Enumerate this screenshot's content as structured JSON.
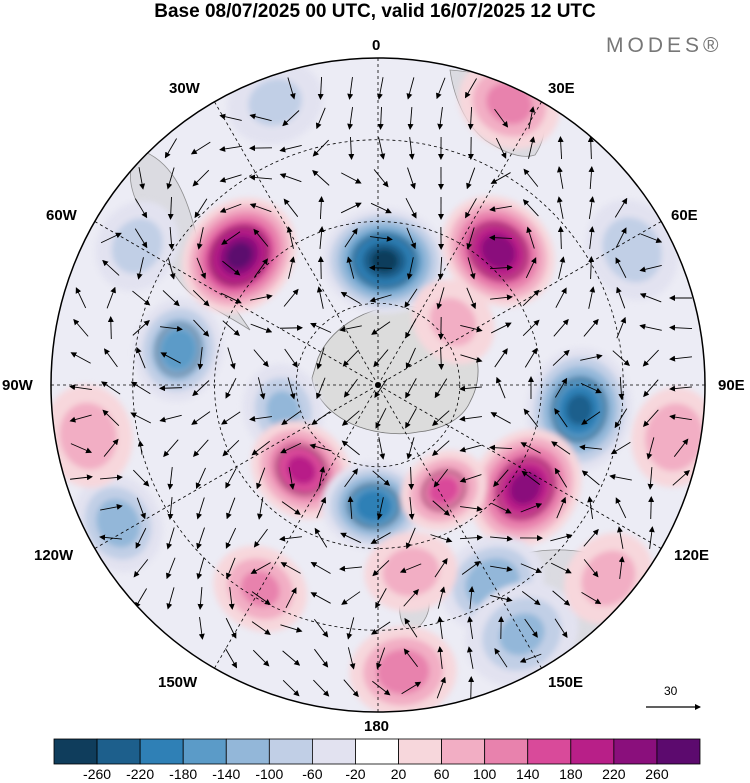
{
  "title": "Base 08/07/2025 00 UTC, valid 16/07/2025 12 UTC",
  "brand": "MODES®",
  "longitude_labels": {
    "top": "0",
    "bottom": "180",
    "left": "90W",
    "right": "90E",
    "w30": "30W",
    "e30": "30E",
    "w60": "60W",
    "e60": "60E",
    "w120": "120W",
    "e120": "120E",
    "w150": "150W",
    "e150": "150E"
  },
  "reference_vector": "30",
  "colorbar": {
    "ticks": [
      "-260",
      "-220",
      "-180",
      "-140",
      "-100",
      "-60",
      "-20",
      "20",
      "60",
      "100",
      "140",
      "180",
      "220",
      "260"
    ],
    "colors": [
      "#0f3d5c",
      "#1d5f8c",
      "#2f80b6",
      "#5b9bc8",
      "#93b7d9",
      "#c1cfe6",
      "#e2e2f0",
      "#ffffff",
      "#f7d7dc",
      "#f2aec4",
      "#e882ad",
      "#d94a9a",
      "#b81f88",
      "#8a0f7c",
      "#5c0a6e"
    ]
  },
  "anomalies": [
    {
      "lon": 3,
      "colat": 0.38,
      "size": 1.0,
      "value": -260
    },
    {
      "lon": 42,
      "colat": 0.55,
      "size": 0.95,
      "value": 240
    },
    {
      "lon": -47,
      "colat": 0.58,
      "size": 1.0,
      "value": 260
    },
    {
      "lon": 97,
      "colat": 0.62,
      "size": 1.0,
      "value": -220
    },
    {
      "lon": 125,
      "colat": 0.55,
      "size": 1.0,
      "value": 230
    },
    {
      "lon": -80,
      "colat": 0.62,
      "size": 0.7,
      "value": -160
    },
    {
      "lon": -105,
      "colat": 0.3,
      "size": 0.55,
      "value": -100
    },
    {
      "lon": -138,
      "colat": 0.35,
      "size": 0.75,
      "value": 180
    },
    {
      "lon": -178,
      "colat": 0.37,
      "size": 0.7,
      "value": -200
    },
    {
      "lon": 148,
      "colat": 0.38,
      "size": 0.5,
      "value": 140
    },
    {
      "lon": 150,
      "colat": 0.7,
      "size": 0.75,
      "value": -130
    },
    {
      "lon": 175,
      "colat": 0.88,
      "size": 0.75,
      "value": 120
    },
    {
      "lon": 150,
      "colat": 0.88,
      "size": 0.9,
      "value": -100
    },
    {
      "lon": -150,
      "colat": 0.72,
      "size": 0.6,
      "value": 100
    },
    {
      "lon": -118,
      "colat": 0.9,
      "size": 0.65,
      "value": -120
    },
    {
      "lon": 25,
      "colat": 0.95,
      "size": 0.7,
      "value": 110
    },
    {
      "lon": 62,
      "colat": 0.88,
      "size": 0.7,
      "value": -80
    },
    {
      "lon": -100,
      "colat": 0.9,
      "size": 0.7,
      "value": 80
    },
    {
      "lon": 100,
      "colat": 0.92,
      "size": 0.65,
      "value": 90
    },
    {
      "lon": 50,
      "colat": 0.3,
      "size": 0.5,
      "value": 60
    },
    {
      "lon": -20,
      "colat": 0.92,
      "size": 0.6,
      "value": -60
    },
    {
      "lon": 170,
      "colat": 0.58,
      "size": 0.55,
      "value": 70
    },
    {
      "lon": -60,
      "colat": 0.85,
      "size": 0.55,
      "value": -70
    },
    {
      "lon": 130,
      "colat": 0.92,
      "size": 0.6,
      "value": 70
    }
  ]
}
